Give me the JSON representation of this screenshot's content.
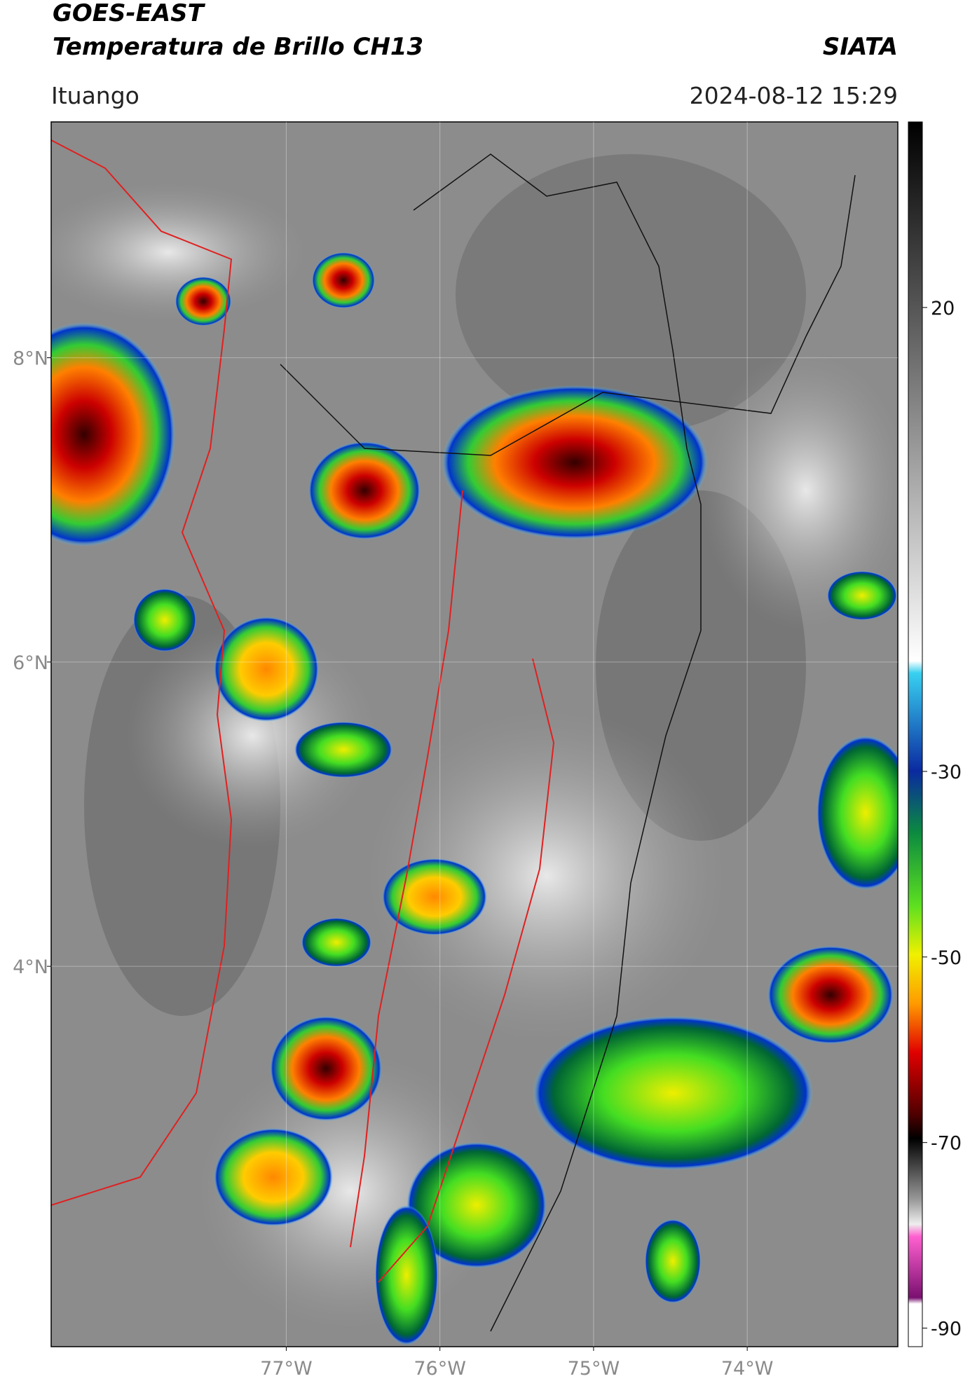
{
  "header": {
    "title": "GOES-EAST",
    "subtitle": "Temperatura de Brillo CH13",
    "source": "SIATA",
    "region": "Ituango",
    "datetime": "2024-08-12 15:29"
  },
  "map": {
    "xlim": [
      -78.53,
      -73.02
    ],
    "ylim": [
      1.5,
      9.55
    ],
    "xticks": [
      {
        "value": -77,
        "label": "77°W"
      },
      {
        "value": -76,
        "label": "76°W"
      },
      {
        "value": -75,
        "label": "75°W"
      },
      {
        "value": -74,
        "label": "74°W"
      }
    ],
    "yticks": [
      {
        "value": 8,
        "label": "8°N"
      },
      {
        "value": 6,
        "label": "6°N"
      },
      {
        "value": 4,
        "label": "4°N"
      }
    ],
    "grid": true
  },
  "colorbar": {
    "lim": [
      -92,
      40
    ],
    "ticks": [
      20,
      -30,
      -50,
      -70,
      -90
    ]
  }
}
